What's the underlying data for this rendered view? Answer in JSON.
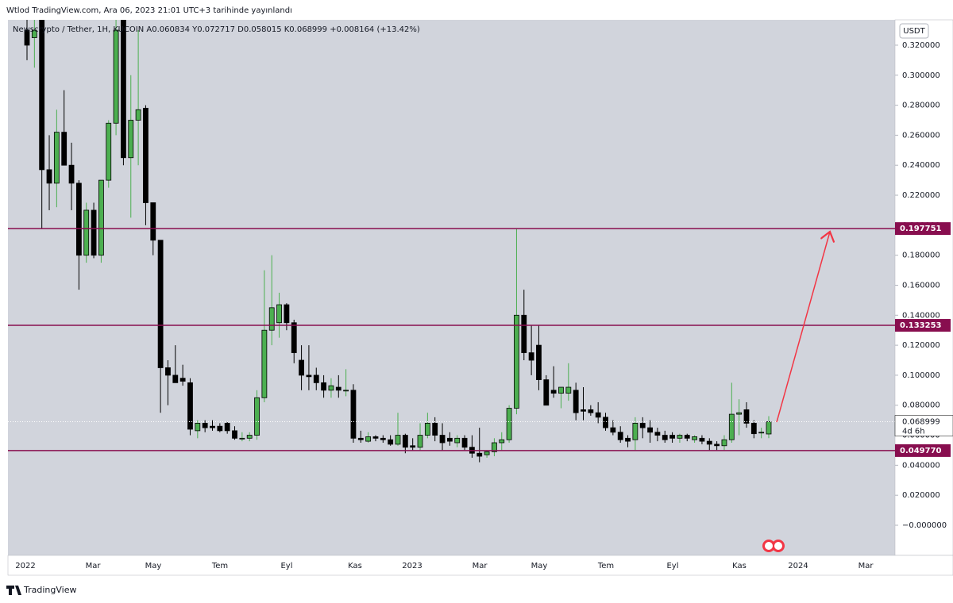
{
  "header": "Wtlod TradingView.com, Ara 06, 2023 21:01 UTC+3 tarihinde yayınlandı",
  "footer": "TradingView",
  "currency_button": "USDT",
  "chart_data": {
    "type": "candlestick",
    "legend": "Newscrypto / Tether, 1H, KUCOIN  A0.060834  Y0.072717  D0.058015  K0.068999  +0.008164 (+13.42%)",
    "ylim": [
      -0.0201,
      0.3369
    ],
    "yticks": [
      {
        "value": 0.32,
        "label": "0.320000"
      },
      {
        "value": 0.3,
        "label": "0.300000"
      },
      {
        "value": 0.28,
        "label": "0.280000"
      },
      {
        "value": 0.26,
        "label": "0.260000"
      },
      {
        "value": 0.24,
        "label": "0.240000"
      },
      {
        "value": 0.22,
        "label": "0.220000"
      },
      {
        "value": 0.2,
        "label": "0.200000"
      },
      {
        "value": 0.18,
        "label": "0.180000"
      },
      {
        "value": 0.16,
        "label": "0.160000"
      },
      {
        "value": 0.14,
        "label": "0.140000"
      },
      {
        "value": 0.12,
        "label": "0.120000"
      },
      {
        "value": 0.1,
        "label": "0.100000"
      },
      {
        "value": 0.08,
        "label": "0.080000"
      },
      {
        "value": 0.06,
        "label": "0.060000"
      },
      {
        "value": 0.04,
        "label": "0.040000"
      },
      {
        "value": 0.02,
        "label": "0.020000"
      },
      {
        "value": 0,
        "label": "−0.000000"
      }
    ],
    "x_labels": [
      "2022",
      "Mar",
      "May",
      "Tem",
      "Eyl",
      "Kas",
      "2023",
      "Mar",
      "May",
      "Tem",
      "Eyl",
      "Kas",
      "2024",
      "Mar"
    ],
    "up_color": "#4caf50",
    "down_color": "#000000",
    "level_color": "#880e4f",
    "levels": [
      0.197751,
      0.133253,
      {
        "value": 0.04977,
        "label": "0.049770"
      }
    ],
    "countdown": "4d 6h",
    "open": [
      0.33,
      0.325,
      0.34,
      0.237,
      0.228,
      0.262,
      0.24,
      0.228,
      0.18,
      0.21,
      0.18,
      0.23,
      0.268,
      0.34,
      0.245,
      0.27,
      0.278,
      0.215,
      0.19,
      0.105,
      0.1,
      0.098,
      0.095,
      0.063,
      0.068,
      0.066,
      0.066,
      0.068,
      0.063,
      0.058,
      0.058,
      0.06,
      0.085,
      0.13,
      0.135,
      0.147,
      0.135,
      0.11,
      0.1,
      0.1,
      0.095,
      0.09,
      0.092,
      0.09,
      0.09,
      0.058,
      0.056,
      0.059,
      0.058,
      0.057,
      0.054,
      0.06,
      0.053,
      0.052,
      0.06,
      0.068,
      0.06,
      0.058,
      0.055,
      0.058,
      0.052,
      0.048,
      0.047,
      0.049,
      0.055,
      0.057,
      0.078,
      0.14,
      0.115,
      0.12,
      0.097,
      0.09,
      0.088,
      0.088,
      0.09,
      0.077,
      0.077,
      0.075,
      0.072,
      0.065,
      0.062,
      0.058,
      0.057,
      0.068,
      0.065,
      0.062,
      0.06,
      0.06,
      0.058,
      0.06,
      0.057,
      0.058,
      0.056,
      0.054,
      0.053,
      0.057,
      0.074,
      0.077,
      0.068,
      0.062,
      0.060834
    ],
    "high": [
      0.34,
      0.34,
      0.34,
      0.26,
      0.277,
      0.29,
      0.255,
      0.23,
      0.215,
      0.215,
      0.23,
      0.27,
      0.34,
      0.34,
      0.3,
      0.33,
      0.28,
      0.215,
      0.19,
      0.11,
      0.12,
      0.107,
      0.098,
      0.07,
      0.07,
      0.07,
      0.068,
      0.069,
      0.066,
      0.062,
      0.062,
      0.09,
      0.17,
      0.18,
      0.155,
      0.148,
      0.137,
      0.12,
      0.12,
      0.105,
      0.1,
      0.098,
      0.1,
      0.104,
      0.094,
      0.063,
      0.062,
      0.06,
      0.06,
      0.06,
      0.075,
      0.061,
      0.058,
      0.068,
      0.075,
      0.072,
      0.068,
      0.062,
      0.06,
      0.06,
      0.06,
      0.065,
      0.05,
      0.058,
      0.062,
      0.08,
      0.1977,
      0.157,
      0.133,
      0.133,
      0.1,
      0.106,
      0.09,
      0.108,
      0.095,
      0.092,
      0.08,
      0.082,
      0.075,
      0.07,
      0.066,
      0.06,
      0.072,
      0.072,
      0.07,
      0.065,
      0.063,
      0.062,
      0.061,
      0.061,
      0.06,
      0.06,
      0.058,
      0.056,
      0.06,
      0.095,
      0.084,
      0.082,
      0.07,
      0.065,
      0.072717
    ],
    "low": [
      0.31,
      0.305,
      0.198,
      0.21,
      0.212,
      0.24,
      0.21,
      0.157,
      0.175,
      0.178,
      0.175,
      0.225,
      0.26,
      0.24,
      0.205,
      0.24,
      0.2,
      0.18,
      0.075,
      0.08,
      0.095,
      0.093,
      0.06,
      0.058,
      0.062,
      0.063,
      0.062,
      0.061,
      0.057,
      0.056,
      0.056,
      0.057,
      0.082,
      0.12,
      0.125,
      0.13,
      0.108,
      0.09,
      0.09,
      0.09,
      0.085,
      0.085,
      0.085,
      0.086,
      0.055,
      0.055,
      0.055,
      0.056,
      0.055,
      0.053,
      0.053,
      0.048,
      0.05,
      0.05,
      0.058,
      0.056,
      0.05,
      0.053,
      0.052,
      0.05,
      0.045,
      0.042,
      0.045,
      0.046,
      0.05,
      0.055,
      0.074,
      0.11,
      0.1,
      0.09,
      0.08,
      0.085,
      0.078,
      0.083,
      0.07,
      0.07,
      0.073,
      0.068,
      0.063,
      0.06,
      0.055,
      0.052,
      0.05,
      0.058,
      0.055,
      0.056,
      0.055,
      0.055,
      0.055,
      0.056,
      0.055,
      0.054,
      0.05,
      0.05,
      0.05,
      0.055,
      0.06,
      0.065,
      0.058,
      0.058,
      0.058015
    ],
    "close": [
      0.32,
      0.33,
      0.237,
      0.228,
      0.262,
      0.24,
      0.228,
      0.18,
      0.21,
      0.18,
      0.23,
      0.268,
      0.33,
      0.245,
      0.27,
      0.277,
      0.215,
      0.19,
      0.105,
      0.1,
      0.095,
      0.096,
      0.064,
      0.068,
      0.065,
      0.065,
      0.063,
      0.063,
      0.058,
      0.058,
      0.06,
      0.085,
      0.13,
      0.145,
      0.147,
      0.135,
      0.115,
      0.1,
      0.099,
      0.095,
      0.09,
      0.093,
      0.09,
      0.09,
      0.058,
      0.057,
      0.059,
      0.058,
      0.057,
      0.054,
      0.06,
      0.052,
      0.052,
      0.06,
      0.068,
      0.06,
      0.055,
      0.056,
      0.058,
      0.052,
      0.048,
      0.046,
      0.049,
      0.055,
      0.057,
      0.078,
      0.14,
      0.115,
      0.11,
      0.097,
      0.08,
      0.088,
      0.092,
      0.092,
      0.075,
      0.076,
      0.075,
      0.072,
      0.065,
      0.062,
      0.057,
      0.056,
      0.068,
      0.065,
      0.062,
      0.06,
      0.057,
      0.058,
      0.06,
      0.058,
      0.059,
      0.056,
      0.054,
      0.053,
      0.057,
      0.074,
      0.075,
      0.068,
      0.061,
      0.062,
      0.068999
    ]
  }
}
